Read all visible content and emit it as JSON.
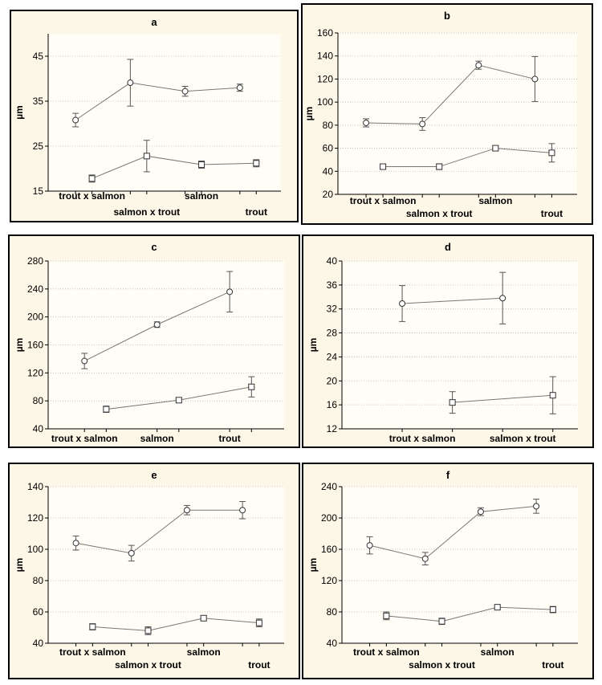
{
  "chart_data": [
    {
      "type": "line",
      "title": "a",
      "ylabel": "µm",
      "xlabel": "",
      "ylim": [
        15,
        50
      ],
      "yticks": [
        15,
        25,
        35,
        45
      ],
      "x_positions": [
        1,
        2,
        3,
        4
      ],
      "x_offset": 0.3,
      "x_range": [
        0.5,
        4.75
      ],
      "x_labels": [
        {
          "text": "trout x salmon",
          "row": 1,
          "pos": 1.3
        },
        {
          "text": "salmon x trout",
          "row": 2,
          "pos": 2.3
        },
        {
          "text": "salmon",
          "row": 1,
          "pos": 3.3
        },
        {
          "text": "trout",
          "row": 2,
          "pos": 4.3
        }
      ],
      "grid": true,
      "series": [
        {
          "marker": "circle",
          "values": [
            30.8,
            39.1,
            37.2,
            38.0
          ],
          "errors": [
            1.5,
            5.2,
            1.1,
            0.8
          ]
        },
        {
          "marker": "square",
          "values": [
            17.8,
            22.8,
            20.9,
            21.2
          ],
          "errors": [
            0.8,
            3.5,
            0.8,
            0.8
          ]
        }
      ]
    },
    {
      "type": "line",
      "title": "b",
      "ylabel": "µm",
      "xlabel": "",
      "ylim": [
        20,
        160
      ],
      "yticks": [
        20,
        40,
        60,
        80,
        100,
        120,
        140,
        160
      ],
      "x_positions": [
        1,
        2,
        3,
        4
      ],
      "x_offset": 0.3,
      "x_range": [
        0.5,
        4.75
      ],
      "x_labels": [
        {
          "text": "trout x salmon",
          "row": 1,
          "pos": 1.3
        },
        {
          "text": "salmon x trout",
          "row": 2,
          "pos": 2.3
        },
        {
          "text": "salmon",
          "row": 1,
          "pos": 3.3
        },
        {
          "text": "trout",
          "row": 2,
          "pos": 4.3
        }
      ],
      "grid": true,
      "series": [
        {
          "marker": "circle",
          "values": [
            82,
            81,
            132,
            120
          ],
          "errors": [
            3.5,
            5.5,
            3.5,
            19.5
          ]
        },
        {
          "marker": "square",
          "values": [
            44,
            44,
            60,
            56
          ],
          "errors": [
            2,
            2.5,
            2,
            8
          ]
        }
      ]
    },
    {
      "type": "line",
      "title": "c",
      "ylabel": "µm",
      "xlabel": "",
      "ylim": [
        40,
        280
      ],
      "yticks": [
        40,
        80,
        120,
        160,
        200,
        240,
        280
      ],
      "x_positions": [
        1,
        2,
        3
      ],
      "x_offset": 0.3,
      "x_range": [
        0.5,
        3.75
      ],
      "x_labels": [
        {
          "text": "trout x salmon",
          "row": 1,
          "pos": 1.0
        },
        {
          "text": "salmon",
          "row": 1,
          "pos": 2.0
        },
        {
          "text": "trout",
          "row": 1,
          "pos": 3.0
        }
      ],
      "grid": true,
      "series": [
        {
          "marker": "circle",
          "values": [
            137,
            189,
            236
          ],
          "errors": [
            11,
            4,
            29
          ]
        },
        {
          "marker": "square",
          "values": [
            68,
            81,
            100
          ],
          "errors": [
            4.5,
            2.5,
            14.5
          ]
        }
      ]
    },
    {
      "type": "line",
      "title": "d",
      "ylabel": "µm",
      "xlabel": "",
      "ylim": [
        12,
        40
      ],
      "yticks": [
        12,
        16,
        20,
        24,
        28,
        32,
        36,
        40
      ],
      "x_positions": [
        1,
        2
      ],
      "x_offset": 0.5,
      "x_range": [
        0.4,
        2.75
      ],
      "x_labels": [
        {
          "text": "trout x salmon",
          "row": 1,
          "pos": 1.2
        },
        {
          "text": "salmon x trout",
          "row": 1,
          "pos": 2.2
        }
      ],
      "grid": true,
      "series": [
        {
          "marker": "circle",
          "values": [
            32.9,
            33.8
          ],
          "errors": [
            3,
            4.3
          ]
        },
        {
          "marker": "square",
          "values": [
            16.4,
            17.6
          ],
          "errors": [
            1.8,
            3.1
          ]
        }
      ]
    },
    {
      "type": "line",
      "title": "e",
      "ylabel": "µm",
      "xlabel": "",
      "ylim": [
        40,
        140
      ],
      "yticks": [
        40,
        60,
        80,
        100,
        120,
        140
      ],
      "x_positions": [
        1,
        2,
        3,
        4
      ],
      "x_offset": 0.3,
      "x_range": [
        0.5,
        4.75
      ],
      "x_labels": [
        {
          "text": "trout x salmon",
          "row": 1,
          "pos": 1.3
        },
        {
          "text": "salmon x trout",
          "row": 2,
          "pos": 2.3
        },
        {
          "text": "salmon",
          "row": 1,
          "pos": 3.3
        },
        {
          "text": "trout",
          "row": 2,
          "pos": 4.3
        }
      ],
      "grid": true,
      "series": [
        {
          "marker": "circle",
          "values": [
            104,
            97.5,
            125,
            125
          ],
          "errors": [
            4.5,
            5,
            3,
            5.5
          ]
        },
        {
          "marker": "square",
          "values": [
            50.5,
            48,
            56,
            53
          ],
          "errors": [
            2,
            2.5,
            1.5,
            2.5
          ]
        }
      ]
    },
    {
      "type": "line",
      "title": "f",
      "ylabel": "µm",
      "xlabel": "",
      "ylim": [
        40,
        240
      ],
      "yticks": [
        40,
        80,
        120,
        160,
        200,
        240
      ],
      "x_positions": [
        1,
        2,
        3,
        4
      ],
      "x_offset": 0.3,
      "x_range": [
        0.5,
        4.75
      ],
      "x_labels": [
        {
          "text": "trout x salmon",
          "row": 1,
          "pos": 1.3
        },
        {
          "text": "salmon x trout",
          "row": 2,
          "pos": 2.3
        },
        {
          "text": "salmon",
          "row": 1,
          "pos": 3.3
        },
        {
          "text": "trout",
          "row": 2,
          "pos": 4.3
        }
      ],
      "grid": true,
      "series": [
        {
          "marker": "circle",
          "values": [
            165,
            148,
            208,
            215
          ],
          "errors": [
            11,
            8,
            5,
            9
          ]
        },
        {
          "marker": "square",
          "values": [
            75,
            68,
            86,
            83
          ],
          "errors": [
            5,
            4,
            2.5,
            4
          ]
        }
      ]
    }
  ],
  "colors": {
    "panel_background": "#fcf7e6",
    "line": "#777777",
    "axis": "#000000",
    "grid": "#b5b5b5"
  }
}
